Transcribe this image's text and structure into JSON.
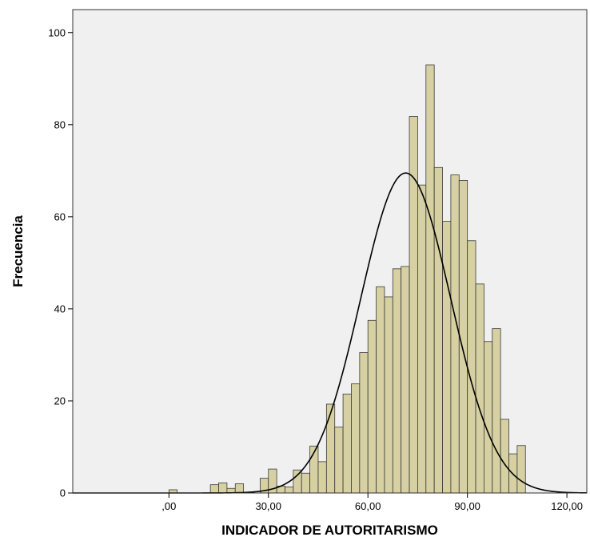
{
  "chart_data": {
    "type": "bar",
    "subtype": "histogram",
    "xlabel": "INDICADOR DE AUTORITARISMO",
    "ylabel": "Frecuencia",
    "xlim": [
      -29,
      126
    ],
    "ylim": [
      0,
      105
    ],
    "x_ticks": [
      {
        "value": 0,
        "label": ",00"
      },
      {
        "value": 30,
        "label": "30,00"
      },
      {
        "value": 60,
        "label": "60,00"
      },
      {
        "value": 90,
        "label": "90,00"
      },
      {
        "value": 120,
        "label": "120,00"
      }
    ],
    "y_ticks": [
      {
        "value": 0,
        "label": "0"
      },
      {
        "value": 20,
        "label": "20"
      },
      {
        "value": 40,
        "label": "40"
      },
      {
        "value": 60,
        "label": "60"
      },
      {
        "value": 80,
        "label": "80"
      },
      {
        "value": 100,
        "label": "100"
      }
    ],
    "bin_width": 2.5,
    "bins": [
      {
        "x": 0,
        "count": 0.7
      },
      {
        "x": 12.5,
        "count": 1.8
      },
      {
        "x": 15,
        "count": 2.2
      },
      {
        "x": 17.5,
        "count": 1.0
      },
      {
        "x": 20,
        "count": 2.0
      },
      {
        "x": 27.5,
        "count": 3.2
      },
      {
        "x": 30,
        "count": 5.2
      },
      {
        "x": 32.5,
        "count": 1.5
      },
      {
        "x": 35,
        "count": 1.3
      },
      {
        "x": 37.5,
        "count": 5.0
      },
      {
        "x": 40,
        "count": 4.3
      },
      {
        "x": 42.5,
        "count": 10.2
      },
      {
        "x": 45,
        "count": 6.8
      },
      {
        "x": 47.5,
        "count": 19.3
      },
      {
        "x": 50,
        "count": 14.3
      },
      {
        "x": 52.5,
        "count": 21.5
      },
      {
        "x": 55,
        "count": 23.7
      },
      {
        "x": 57.5,
        "count": 30.5
      },
      {
        "x": 60,
        "count": 37.5
      },
      {
        "x": 62.5,
        "count": 44.8
      },
      {
        "x": 65,
        "count": 42.6
      },
      {
        "x": 67.5,
        "count": 48.7
      },
      {
        "x": 70,
        "count": 49.2
      },
      {
        "x": 72.5,
        "count": 81.8
      },
      {
        "x": 75,
        "count": 66.9
      },
      {
        "x": 77.5,
        "count": 93.0
      },
      {
        "x": 80,
        "count": 70.7
      },
      {
        "x": 82.5,
        "count": 59.0
      },
      {
        "x": 85,
        "count": 69.1
      },
      {
        "x": 87.5,
        "count": 67.9
      },
      {
        "x": 90,
        "count": 54.8
      },
      {
        "x": 92.5,
        "count": 45.4
      },
      {
        "x": 95,
        "count": 32.9
      },
      {
        "x": 97.5,
        "count": 35.7
      },
      {
        "x": 100,
        "count": 16.0
      },
      {
        "x": 102.5,
        "count": 8.5
      },
      {
        "x": 105,
        "count": 10.3
      }
    ],
    "normal_curve": {
      "mean": 71.4,
      "sd": 13.6,
      "peak": 69.5
    },
    "grid": false,
    "colors": {
      "bar_fill": "#d6d0a2",
      "bar_stroke": "#3a3a3a",
      "curve": "#000000",
      "plot_background": "#f0f0f0",
      "frame": "#333333"
    }
  }
}
